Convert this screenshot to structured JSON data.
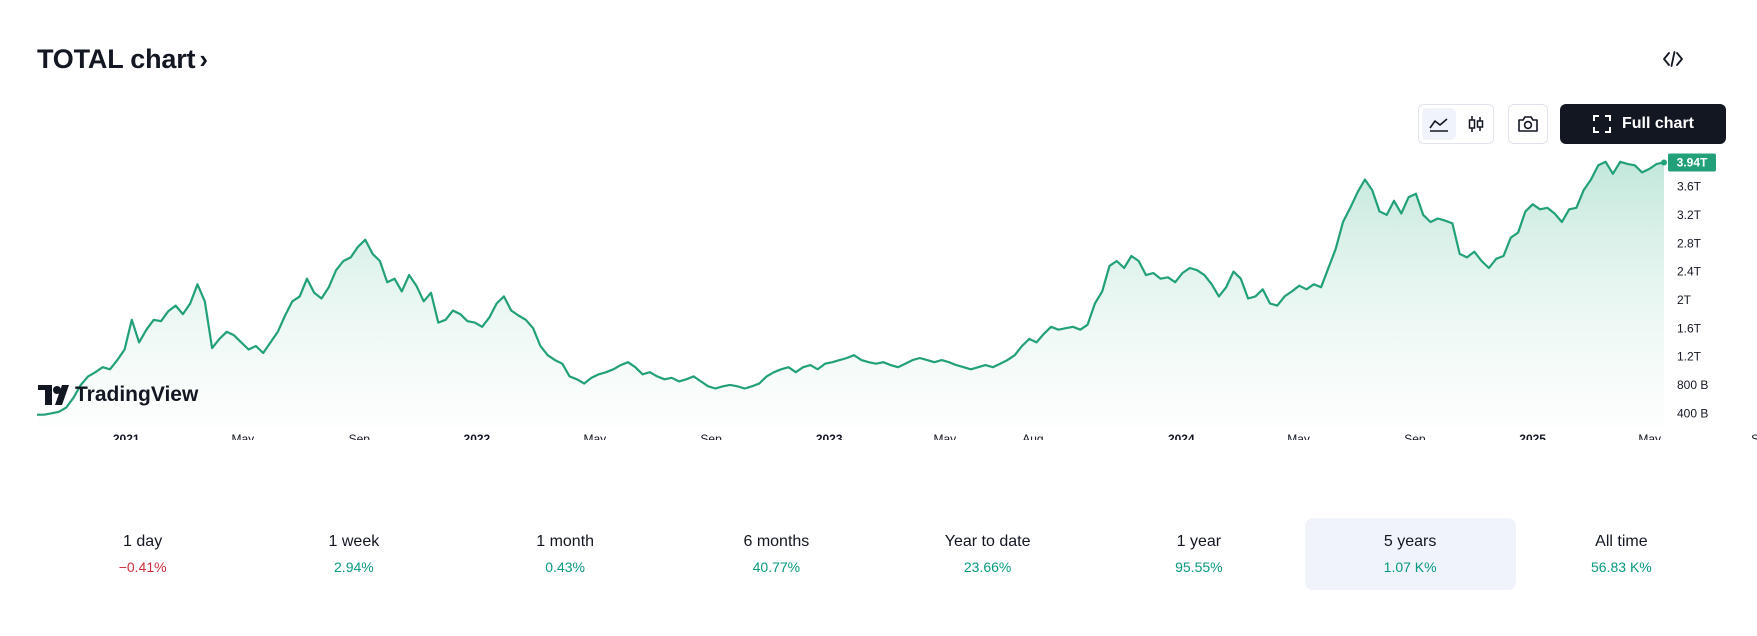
{
  "header": {
    "title": "TOTAL chart",
    "chevron": "›",
    "embed_icon": "code-embed-icon"
  },
  "toolbar": {
    "line_icon": "area-chart-icon",
    "candle_icon": "candlestick-icon",
    "camera_icon": "camera-icon",
    "full_chart_label": "Full chart",
    "fullscreen_icon": "fullscreen-icon"
  },
  "watermark": {
    "text": "TradingView"
  },
  "colors": {
    "line": "#22a079",
    "fill_top": "#b8e3d5",
    "badge": "#22a079",
    "negative": "#cc2f3c",
    "positive": "#089981"
  },
  "chart_data": {
    "type": "area",
    "series": [
      {
        "values": [
          0.38,
          0.38,
          0.4,
          0.42,
          0.48,
          0.62,
          0.8,
          0.92,
          0.98,
          1.05,
          1.02,
          1.15,
          1.3,
          1.72,
          1.4,
          1.58,
          1.72,
          1.7,
          1.84,
          1.92,
          1.8,
          1.95,
          2.22,
          1.98,
          1.32,
          1.45,
          1.55,
          1.5,
          1.4,
          1.3,
          1.35,
          1.25,
          1.4,
          1.55,
          1.78,
          1.98,
          2.05,
          2.3,
          2.1,
          2.02,
          2.18,
          2.42,
          2.55,
          2.6,
          2.75,
          2.85,
          2.65,
          2.55,
          2.25,
          2.3,
          2.12,
          2.35,
          2.2,
          1.98,
          2.1,
          1.68,
          1.72,
          1.85,
          1.8,
          1.7,
          1.68,
          1.62,
          1.75,
          1.95,
          2.05,
          1.85,
          1.78,
          1.72,
          1.6,
          1.35,
          1.22,
          1.15,
          1.1,
          0.92,
          0.88,
          0.82,
          0.9,
          0.95,
          0.98,
          1.02,
          1.08,
          1.12,
          1.05,
          0.95,
          0.98,
          0.92,
          0.88,
          0.9,
          0.85,
          0.88,
          0.92,
          0.85,
          0.78,
          0.75,
          0.78,
          0.8,
          0.78,
          0.75,
          0.78,
          0.82,
          0.92,
          0.98,
          1.02,
          1.05,
          0.98,
          1.05,
          1.08,
          1.02,
          1.1,
          1.12,
          1.15,
          1.18,
          1.22,
          1.15,
          1.12,
          1.1,
          1.12,
          1.08,
          1.05,
          1.1,
          1.15,
          1.18,
          1.15,
          1.12,
          1.15,
          1.12,
          1.08,
          1.05,
          1.02,
          1.05,
          1.08,
          1.05,
          1.1,
          1.15,
          1.22,
          1.35,
          1.45,
          1.4,
          1.52,
          1.62,
          1.58,
          1.6,
          1.62,
          1.58,
          1.65,
          1.95,
          2.12,
          2.48,
          2.55,
          2.45,
          2.62,
          2.55,
          2.35,
          2.38,
          2.3,
          2.32,
          2.25,
          2.38,
          2.45,
          2.42,
          2.35,
          2.22,
          2.05,
          2.18,
          2.4,
          2.3,
          2.02,
          2.05,
          2.15,
          1.95,
          1.92,
          2.05,
          2.12,
          2.2,
          2.15,
          2.22,
          2.18,
          2.45,
          2.72,
          3.1,
          3.3,
          3.52,
          3.7,
          3.55,
          3.25,
          3.2,
          3.4,
          3.22,
          3.45,
          3.5,
          3.2,
          3.1,
          3.15,
          3.12,
          3.08,
          2.65,
          2.6,
          2.68,
          2.55,
          2.45,
          2.58,
          2.62,
          2.88,
          2.95,
          3.25,
          3.35,
          3.28,
          3.3,
          3.22,
          3.1,
          3.28,
          3.3,
          3.55,
          3.7,
          3.9,
          3.95,
          3.78,
          3.95,
          3.92,
          3.9,
          3.8,
          3.85,
          3.92,
          3.94
        ]
      }
    ],
    "x_tick_labels": [
      {
        "label": "2021",
        "pos": 0.0547,
        "bold": true
      },
      {
        "label": "May",
        "pos": 0.1262,
        "bold": false
      },
      {
        "label": "Sep",
        "pos": 0.1976,
        "bold": false
      },
      {
        "label": "2022",
        "pos": 0.2697,
        "bold": true
      },
      {
        "label": "May",
        "pos": 0.342,
        "bold": false
      },
      {
        "label": "Sep",
        "pos": 0.4133,
        "bold": false
      },
      {
        "label": "2023",
        "pos": 0.4857,
        "bold": true
      },
      {
        "label": "May",
        "pos": 0.5566,
        "bold": false
      },
      {
        "label": "Aug",
        "pos": 0.6106,
        "bold": false
      },
      {
        "label": "2024",
        "pos": 0.7016,
        "bold": true
      },
      {
        "label": "May",
        "pos": 0.7735,
        "bold": false
      },
      {
        "label": "Sep",
        "pos": 0.8448,
        "bold": false
      },
      {
        "label": "2025",
        "pos": 0.917,
        "bold": true
      },
      {
        "label": "May",
        "pos": 0.9888,
        "bold": false
      },
      {
        "label": "Sep",
        "pos": 1.0575,
        "bold": false
      }
    ],
    "y_ticks": [
      {
        "label": "400 B",
        "value": 0.4
      },
      {
        "label": "800 B",
        "value": 0.8
      },
      {
        "label": "1.2T",
        "value": 1.2
      },
      {
        "label": "1.6T",
        "value": 1.6
      },
      {
        "label": "2T",
        "value": 2.0
      },
      {
        "label": "2.4T",
        "value": 2.4
      },
      {
        "label": "2.8T",
        "value": 2.8
      },
      {
        "label": "3.2T",
        "value": 3.2
      },
      {
        "label": "3.6T",
        "value": 3.6
      }
    ],
    "last_value_label": "3.94T",
    "ylim": [
      0.22,
      4.06
    ]
  },
  "periods": [
    {
      "label": "1 day",
      "value": "−0.41%",
      "sign": "neg",
      "active": false
    },
    {
      "label": "1 week",
      "value": "2.94%",
      "sign": "pos",
      "active": false
    },
    {
      "label": "1 month",
      "value": "0.43%",
      "sign": "pos",
      "active": false
    },
    {
      "label": "6 months",
      "value": "40.77%",
      "sign": "pos",
      "active": false
    },
    {
      "label": "Year to date",
      "value": "23.66%",
      "sign": "pos",
      "active": false
    },
    {
      "label": "1 year",
      "value": "95.55%",
      "sign": "pos",
      "active": false
    },
    {
      "label": "5 years",
      "value": "1.07 K%",
      "sign": "pos",
      "active": true
    },
    {
      "label": "All time",
      "value": "56.83 K%",
      "sign": "pos",
      "active": false
    }
  ]
}
